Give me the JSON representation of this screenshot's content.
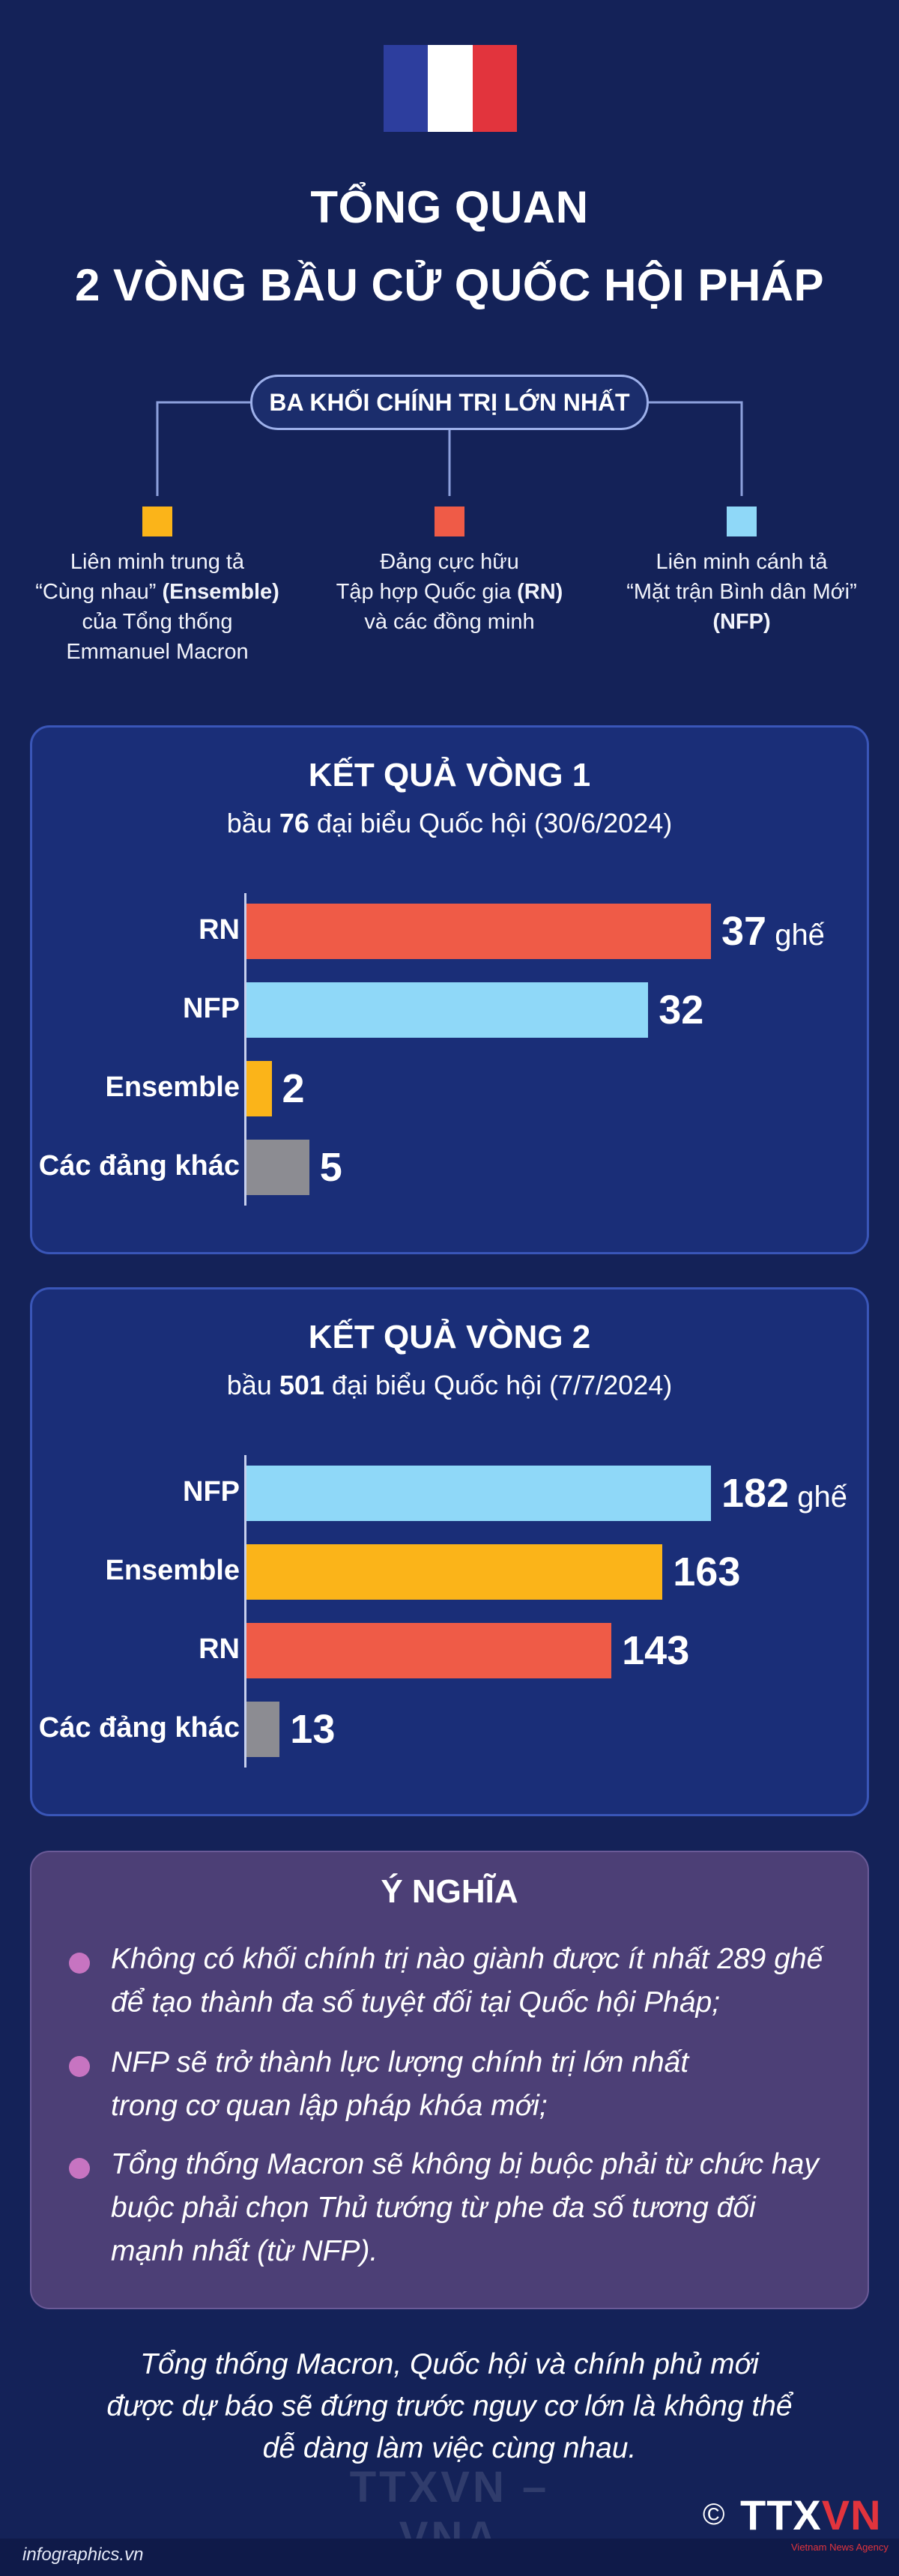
{
  "colors": {
    "background": "#142258",
    "flag_blue": "#2d3e9e",
    "flag_white": "#ffffff",
    "flag_red": "#e2343d",
    "ensemble": "#fbb419",
    "rn": "#ef5b47",
    "nfp": "#8fd8f8",
    "others": "#8c8c92",
    "panel": "#1a2e78",
    "meaning_panel": "#4c3f76",
    "bullet": "#c774c1"
  },
  "header": {
    "title_line1": "TỔNG QUAN",
    "title_line2": "2 VÒNG BẦU CỬ QUỐC HỘI PHÁP"
  },
  "blocs": {
    "heading": "BA KHỐI CHÍNH TRỊ LỚN NHẤT",
    "ensemble": {
      "line1": "Liên minh trung tả",
      "line2_pre": "“Cùng nhau” ",
      "line2_bold": "(Ensemble)",
      "line3": "của Tổng thống",
      "line4": "Emmanuel Macron"
    },
    "rn": {
      "line1": "Đảng cực hữu",
      "line2_pre": "Tập hợp Quốc gia ",
      "line2_bold": "(RN)",
      "line3": "và các đồng minh"
    },
    "nfp": {
      "line1": "Liên minh cánh tả",
      "line2": "“Mặt trận Bình dân Mới”",
      "line3_bold": "(NFP)"
    }
  },
  "chart_data": [
    {
      "type": "bar",
      "orientation": "horizontal",
      "title": "KẾT QUẢ VÒNG 1",
      "subtitle_pre": "bầu ",
      "subtitle_number": "76",
      "subtitle_post": " đại biểu Quốc hội (30/6/2024)",
      "unit": "ghế",
      "categories": [
        "RN",
        "NFP",
        "Ensemble",
        "Các đảng khác"
      ],
      "values": [
        37,
        32,
        2,
        5
      ],
      "value_labels": [
        "37",
        "32",
        "2",
        "5"
      ],
      "xlim": [
        0,
        37
      ]
    },
    {
      "type": "bar",
      "orientation": "horizontal",
      "title": "KẾT QUẢ VÒNG 2",
      "subtitle_pre": "bầu ",
      "subtitle_number": "501",
      "subtitle_post": " đại biểu Quốc hội (7/7/2024)",
      "unit": "ghế",
      "categories": [
        "NFP",
        "Ensemble",
        "RN",
        "Các đảng khác"
      ],
      "values": [
        182,
        163,
        143,
        13
      ],
      "value_labels": [
        "182",
        "163",
        "143",
        "13"
      ],
      "xlim": [
        0,
        182
      ]
    }
  ],
  "meaning": {
    "title": "Ý NGHĨA",
    "items": [
      {
        "line1": "Không có khối chính trị nào giành được ít nhất 289 ghế",
        "line2": "để tạo thành đa số tuyệt đối tại Quốc hội Pháp;"
      },
      {
        "line1": "NFP sẽ trở thành lực lượng chính trị lớn nhất",
        "line2": "trong cơ quan lập pháp khóa mới;"
      },
      {
        "line1": "Tổng thống Macron sẽ không bị buộc phải từ chức hay",
        "line2": "buộc phải chọn Thủ tướng từ phe đa số tương đối",
        "line3": "mạnh nhất (từ NFP)."
      }
    ]
  },
  "footer": {
    "note_line1": "Tổng thống Macron, Quốc hội và chính phủ mới",
    "note_line2": "được dự báo sẽ đứng trước nguy cơ lớn là không thể",
    "note_line3": "dễ dàng làm việc cùng nhau.",
    "watermark": "TTXVN – VNA",
    "site": "infographics.vn",
    "copyright": "©",
    "logo_main": "TTX",
    "logo_accent": "VN",
    "logo_sub": "Vietnam News Agency"
  }
}
